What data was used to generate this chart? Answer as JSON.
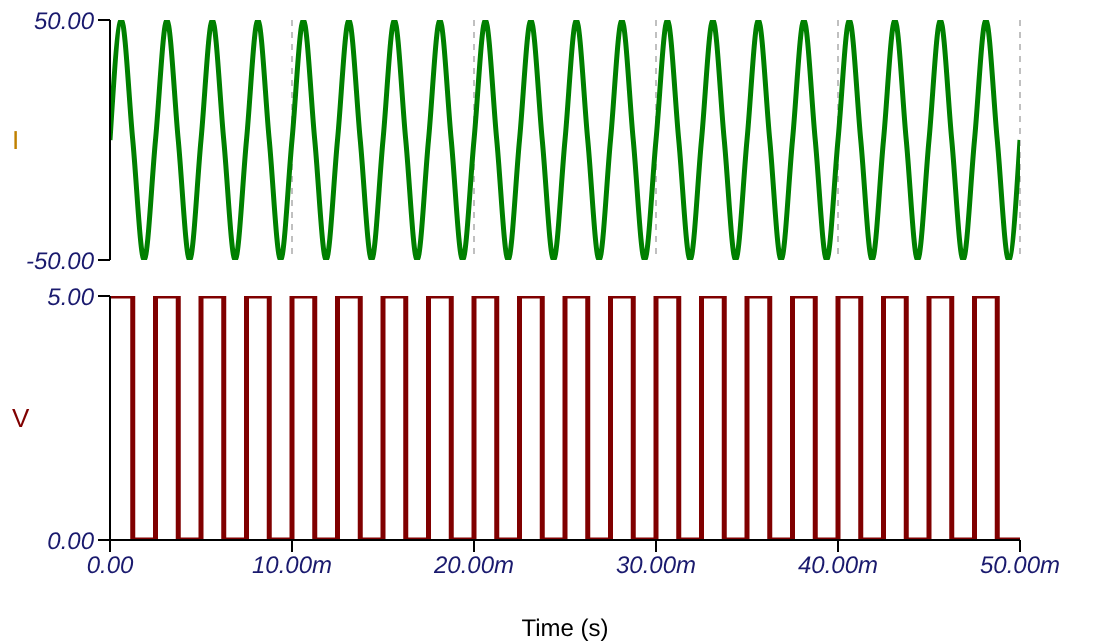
{
  "chart_data": [
    {
      "type": "line",
      "ylabel": "I",
      "x": [
        0,
        0.625,
        1.25,
        1.875,
        2.5,
        3.125,
        3.75,
        4.375,
        5,
        5.625,
        6.25,
        6.875,
        7.5,
        8.125,
        8.75,
        9.375,
        10,
        10.625,
        11.25,
        11.875,
        12.5,
        13.125,
        13.75,
        14.375,
        15,
        15.625,
        16.25,
        16.875,
        17.5,
        18.125,
        18.75,
        19.375,
        20,
        20.625,
        21.25,
        21.875,
        22.5,
        23.125,
        23.75,
        24.375,
        25,
        25.625,
        26.25,
        26.875,
        27.5,
        28.125,
        28.75,
        29.375,
        30,
        30.625,
        31.25,
        31.875,
        32.5,
        33.125,
        33.75,
        34.375,
        35,
        35.625,
        36.25,
        36.875,
        37.5,
        38.125,
        38.75,
        39.375,
        40,
        40.625,
        41.25,
        41.875,
        42.5,
        43.125,
        43.75,
        44.375,
        45,
        45.625,
        46.25,
        46.875,
        47.5,
        48.125,
        48.75,
        49.375,
        50
      ],
      "series": [
        {
          "color": "#008000",
          "values": [
            0,
            50,
            0,
            -50,
            0,
            50,
            0,
            -50,
            0,
            50,
            0,
            -50,
            0,
            50,
            0,
            -50,
            0,
            50,
            0,
            -50,
            0,
            50,
            0,
            -50,
            0,
            50,
            0,
            -50,
            0,
            50,
            0,
            -50,
            0,
            50,
            0,
            -50,
            0,
            50,
            0,
            -50,
            0,
            50,
            0,
            -50,
            0,
            50,
            0,
            -50,
            0,
            50,
            0,
            -50,
            0,
            50,
            0,
            -50,
            0,
            50,
            0,
            -50,
            0,
            50,
            0,
            -50,
            0,
            50,
            0,
            -50,
            0,
            50,
            0,
            -50,
            0,
            50,
            0,
            -50,
            0,
            50,
            0,
            -50,
            0
          ]
        }
      ],
      "xlim": [
        0,
        50
      ],
      "xticks": [
        0,
        10,
        20,
        30,
        40,
        50
      ],
      "ylim": [
        -50,
        50
      ],
      "yticks": [
        {
          "value": -50,
          "label": "-50.00"
        },
        {
          "value": 50,
          "label": "50.00"
        }
      ],
      "grid": "x",
      "tick_labels": "y"
    },
    {
      "type": "step",
      "ylabel": "V",
      "xlabel": "Time (s)",
      "x": [
        0,
        1.25,
        2.5,
        3.75,
        5,
        6.25,
        7.5,
        8.75,
        10,
        11.25,
        12.5,
        13.75,
        15,
        16.25,
        17.5,
        18.75,
        20,
        21.25,
        22.5,
        23.75,
        25,
        26.25,
        27.5,
        28.75,
        30,
        31.25,
        32.5,
        33.75,
        35,
        36.25,
        37.5,
        38.75,
        40,
        41.25,
        42.5,
        43.75,
        45,
        46.25,
        47.5,
        48.75,
        50
      ],
      "series": [
        {
          "color": "#800000",
          "values": [
            5,
            0,
            5,
            0,
            5,
            0,
            5,
            0,
            5,
            0,
            5,
            0,
            5,
            0,
            5,
            0,
            5,
            0,
            5,
            0,
            5,
            0,
            5,
            0,
            5,
            0,
            5,
            0,
            5,
            0,
            5,
            0,
            5,
            0,
            5,
            0,
            5,
            0,
            5,
            0,
            0
          ]
        }
      ],
      "xlim": [
        0,
        50
      ],
      "xticks": [
        {
          "value": 0,
          "label": "0.00"
        },
        {
          "value": 10,
          "label": "10.00m"
        },
        {
          "value": 20,
          "label": "20.00m"
        },
        {
          "value": 30,
          "label": "30.00m"
        },
        {
          "value": 40,
          "label": "40.00m"
        },
        {
          "value": 50,
          "label": "50.00m"
        }
      ],
      "ylim": [
        0,
        5
      ],
      "yticks": [
        {
          "value": 0,
          "label": "0.00"
        },
        {
          "value": 5,
          "label": "5.00"
        }
      ],
      "grid": false
    }
  ]
}
